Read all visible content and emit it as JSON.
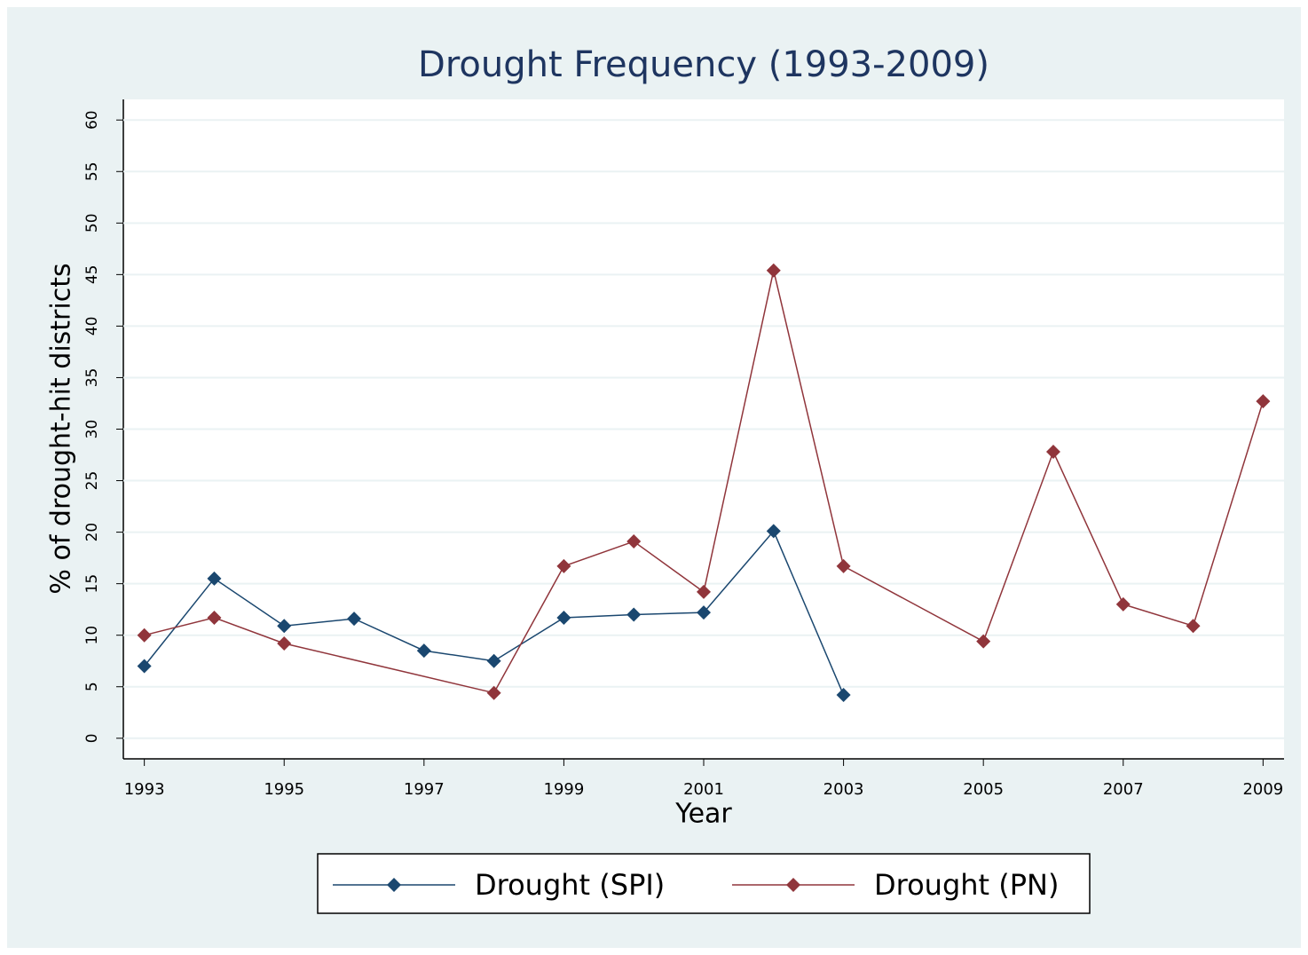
{
  "chart_data": {
    "type": "line",
    "title": "Drought Frequency (1993-2009)",
    "x_label": "Year",
    "y_label": "% of drought-hit districts",
    "series": [
      {
        "name": "Drought (SPI)",
        "color": "#1a476f",
        "x": [
          1993,
          1994,
          1995,
          1996,
          1997,
          1998,
          1999,
          2000,
          2001,
          2002,
          2003
        ],
        "values": [
          7,
          15.5,
          10.9,
          11.6,
          8.5,
          7.5,
          11.7,
          12,
          12.2,
          20.1,
          4.2
        ]
      },
      {
        "name": "Drought (PN)",
        "color": "#90353b",
        "x": [
          1993,
          1994,
          1995,
          1998,
          1999,
          2000,
          2001,
          2002,
          2003,
          2005,
          2006,
          2007,
          2008,
          2009
        ],
        "values": [
          10,
          11.7,
          9.2,
          4.4,
          16.7,
          19.1,
          14.2,
          45.4,
          16.7,
          9.4,
          27.8,
          13,
          10.9,
          32.7
        ]
      }
    ],
    "xlim": [
      1992.7,
      2009.3
    ],
    "xticks": [
      1993,
      1995,
      1997,
      1999,
      2001,
      2003,
      2005,
      2007,
      2009
    ],
    "ylim": [
      -2,
      62
    ],
    "yticks": [
      0,
      5,
      10,
      15,
      20,
      25,
      30,
      35,
      40,
      45,
      50,
      55,
      60
    ],
    "grid": true,
    "legend": "bottom"
  }
}
